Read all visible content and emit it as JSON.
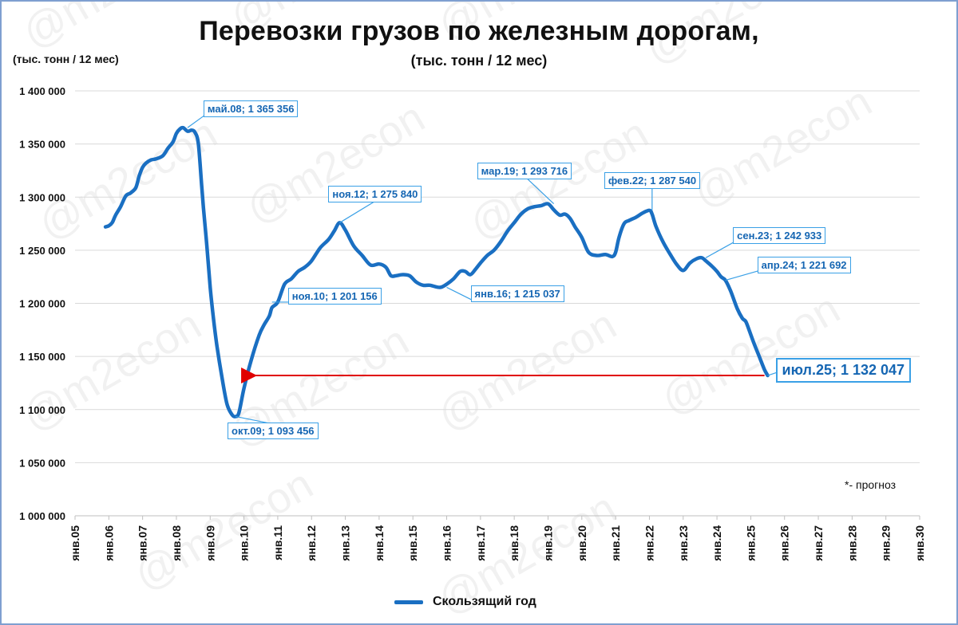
{
  "title": "Перевозки грузов по железным дорогам,",
  "subtitle": "(тыс. тонн / 12 мес)",
  "ylabel": "(тыс. тонн / 12 мес)",
  "watermark": "@m2econ",
  "note": "*- прогноз",
  "colors": {
    "line": "#1a6fc2",
    "arrow": "#e00000",
    "annotation_border": "#3aa0e6",
    "annotation_text": "#1566b3",
    "grid": "#d9d9d9"
  },
  "chart_data": {
    "type": "line",
    "title": "Перевозки грузов по железным дорогам,",
    "subtitle": "(тыс. тонн / 12 мес)",
    "ylabel": "(тыс. тонн / 12 мес)",
    "ylim": [
      1000000,
      1400000
    ],
    "yticks": [
      "1 000 000",
      "1 050 000",
      "1 100 000",
      "1 150 000",
      "1 200 000",
      "1 250 000",
      "1 300 000",
      "1 350 000",
      "1 400 000"
    ],
    "ytick_values": [
      1000000,
      1050000,
      1100000,
      1150000,
      1200000,
      1250000,
      1300000,
      1350000,
      1400000
    ],
    "xlim": [
      2005.0,
      2030.0
    ],
    "xticks": [
      "янв.05",
      "янв.06",
      "янв.07",
      "янв.08",
      "янв.09",
      "янв.10",
      "янв.11",
      "янв.12",
      "янв.13",
      "янв.14",
      "янв.15",
      "янв.16",
      "янв.17",
      "янв.18",
      "янв.19",
      "янв.20",
      "янв.21",
      "янв.22",
      "янв.23",
      "янв.24",
      "янв.25",
      "янв.26",
      "янв.27",
      "янв.28",
      "янв.29",
      "янв.30"
    ],
    "grid": "horizontal",
    "legend_position": "bottom",
    "series": [
      {
        "name": "Скользящий год",
        "x": [
          2005.9,
          2006.0,
          2006.1,
          2006.2,
          2006.35,
          2006.5,
          2006.65,
          2006.8,
          2006.9,
          2007.0,
          2007.1,
          2007.25,
          2007.4,
          2007.6,
          2007.75,
          2007.9,
          2008.0,
          2008.1,
          2008.2,
          2008.33,
          2008.45,
          2008.55,
          2008.65,
          2008.75,
          2008.8,
          2008.9,
          2009.0,
          2009.1,
          2009.2,
          2009.35,
          2009.5,
          2009.65,
          2009.75,
          2009.85,
          2010.0,
          2010.2,
          2010.45,
          2010.6,
          2010.75,
          2010.83,
          2011.0,
          2011.2,
          2011.4,
          2011.6,
          2011.8,
          2012.0,
          2012.25,
          2012.5,
          2012.67,
          2012.83,
          2013.0,
          2013.25,
          2013.5,
          2013.75,
          2014.0,
          2014.2,
          2014.35,
          2014.5,
          2014.7,
          2014.9,
          2015.1,
          2015.3,
          2015.5,
          2015.8,
          2016.0,
          2016.2,
          2016.4,
          2016.55,
          2016.7,
          2016.85,
          2017.0,
          2017.2,
          2017.4,
          2017.6,
          2017.8,
          2018.0,
          2018.2,
          2018.4,
          2018.6,
          2018.8,
          2019.0,
          2019.17,
          2019.35,
          2019.5,
          2019.65,
          2019.8,
          2020.0,
          2020.2,
          2020.45,
          2020.7,
          2020.9,
          2021.0,
          2021.1,
          2021.25,
          2021.4,
          2021.6,
          2021.8,
          2022.0,
          2022.08,
          2022.2,
          2022.4,
          2022.6,
          2022.8,
          2023.0,
          2023.2,
          2023.4,
          2023.55,
          2023.67,
          2023.85,
          2024.0,
          2024.12,
          2024.25,
          2024.4,
          2024.6,
          2024.75,
          2024.85,
          2024.95,
          2025.1,
          2025.25,
          2025.4,
          2025.5
        ],
        "values": [
          1272000,
          1273000,
          1276000,
          1283000,
          1291000,
          1301000,
          1304000,
          1309000,
          1320000,
          1328000,
          1332000,
          1335000,
          1336000,
          1339000,
          1346000,
          1352000,
          1360000,
          1364000,
          1365356,
          1362000,
          1363000,
          1361000,
          1350000,
          1310000,
          1290000,
          1255000,
          1215000,
          1185000,
          1160000,
          1130000,
          1105000,
          1095000,
          1093456,
          1097000,
          1120000,
          1145000,
          1170000,
          1180000,
          1188000,
          1196000,
          1201156,
          1218000,
          1223000,
          1230000,
          1234000,
          1240000,
          1252000,
          1260000,
          1268000,
          1275840,
          1269000,
          1254000,
          1245000,
          1236000,
          1237000,
          1234000,
          1226000,
          1226000,
          1227000,
          1226000,
          1220000,
          1217000,
          1217000,
          1215037,
          1218000,
          1223000,
          1230000,
          1230000,
          1227000,
          1232000,
          1238000,
          1245000,
          1250000,
          1258000,
          1268000,
          1276000,
          1284000,
          1289000,
          1291000,
          1292000,
          1293716,
          1288000,
          1283000,
          1284000,
          1280000,
          1272000,
          1262000,
          1248000,
          1245000,
          1246000,
          1244000,
          1248000,
          1262000,
          1275000,
          1278000,
          1281000,
          1285000,
          1287540,
          1284000,
          1272000,
          1258000,
          1247000,
          1237000,
          1231000,
          1238000,
          1242000,
          1242933,
          1240000,
          1235000,
          1230000,
          1225000,
          1221692,
          1212000,
          1195000,
          1186000,
          1183000,
          1175000,
          1162000,
          1150000,
          1138000,
          1132047
        ]
      }
    ],
    "annotations": [
      {
        "text": "май.08; 1 365 356",
        "x": 2008.33,
        "y": 1365356
      },
      {
        "text": "окт.09; 1 093 456",
        "x": 2009.75,
        "y": 1093456
      },
      {
        "text": "ноя.10; 1 201 156",
        "x": 2010.83,
        "y": 1201156
      },
      {
        "text": "ноя.12; 1 275 840",
        "x": 2012.83,
        "y": 1275840
      },
      {
        "text": "янв.16; 1 215 037",
        "x": 2016.0,
        "y": 1215037
      },
      {
        "text": "мар.19; 1 293 716",
        "x": 2019.17,
        "y": 1293716
      },
      {
        "text": "фев.22; 1 287 540",
        "x": 2022.08,
        "y": 1287540
      },
      {
        "text": "сен.23; 1 242 933",
        "x": 2023.67,
        "y": 1242933
      },
      {
        "text": "апр.24; 1 221 692",
        "x": 2024.25,
        "y": 1221692
      },
      {
        "text": "июл.25; 1 132 047",
        "x": 2025.5,
        "y": 1132047
      }
    ],
    "reference_arrow": {
      "from_x": 2025.5,
      "to_x": 2010.2,
      "y": 1132047
    }
  },
  "legend": {
    "label": "Скользящий год"
  }
}
